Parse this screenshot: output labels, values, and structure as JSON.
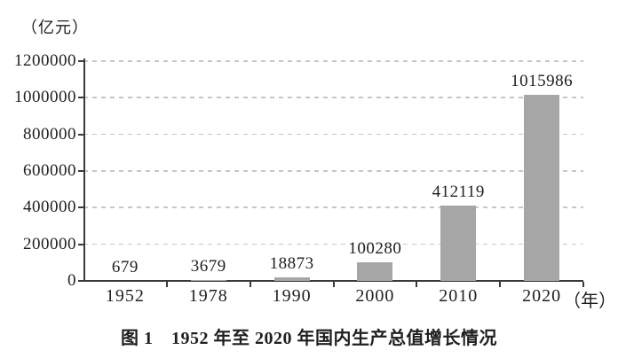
{
  "chart_data": {
    "type": "bar",
    "title": "图 1　1952 年至 2020 年国内生产总值增长情况",
    "ylabel": "（亿元）",
    "xlabel_suffix": "（年）",
    "categories": [
      "1952",
      "1978",
      "1990",
      "2000",
      "2010",
      "2020"
    ],
    "values": [
      679,
      3679,
      18873,
      100280,
      412119,
      1015986
    ],
    "value_labels": [
      "679",
      "3679",
      "18873",
      "100280",
      "412119",
      "1015986"
    ],
    "ylim": [
      0,
      1200000
    ],
    "yticks": [
      0,
      200000,
      400000,
      600000,
      800000,
      1000000,
      1200000
    ],
    "ytick_labels": [
      "0",
      "200000",
      "400000",
      "600000",
      "800000",
      "1000000",
      "1200000"
    ],
    "grid": "horizontal-dashed",
    "legend_position": "none",
    "colors": {
      "bar": "#a6a6a6",
      "axis": "#3a3a3a",
      "grid": "#c6c6c6",
      "text": "#1f1f1f",
      "background": "#ffffff"
    }
  }
}
